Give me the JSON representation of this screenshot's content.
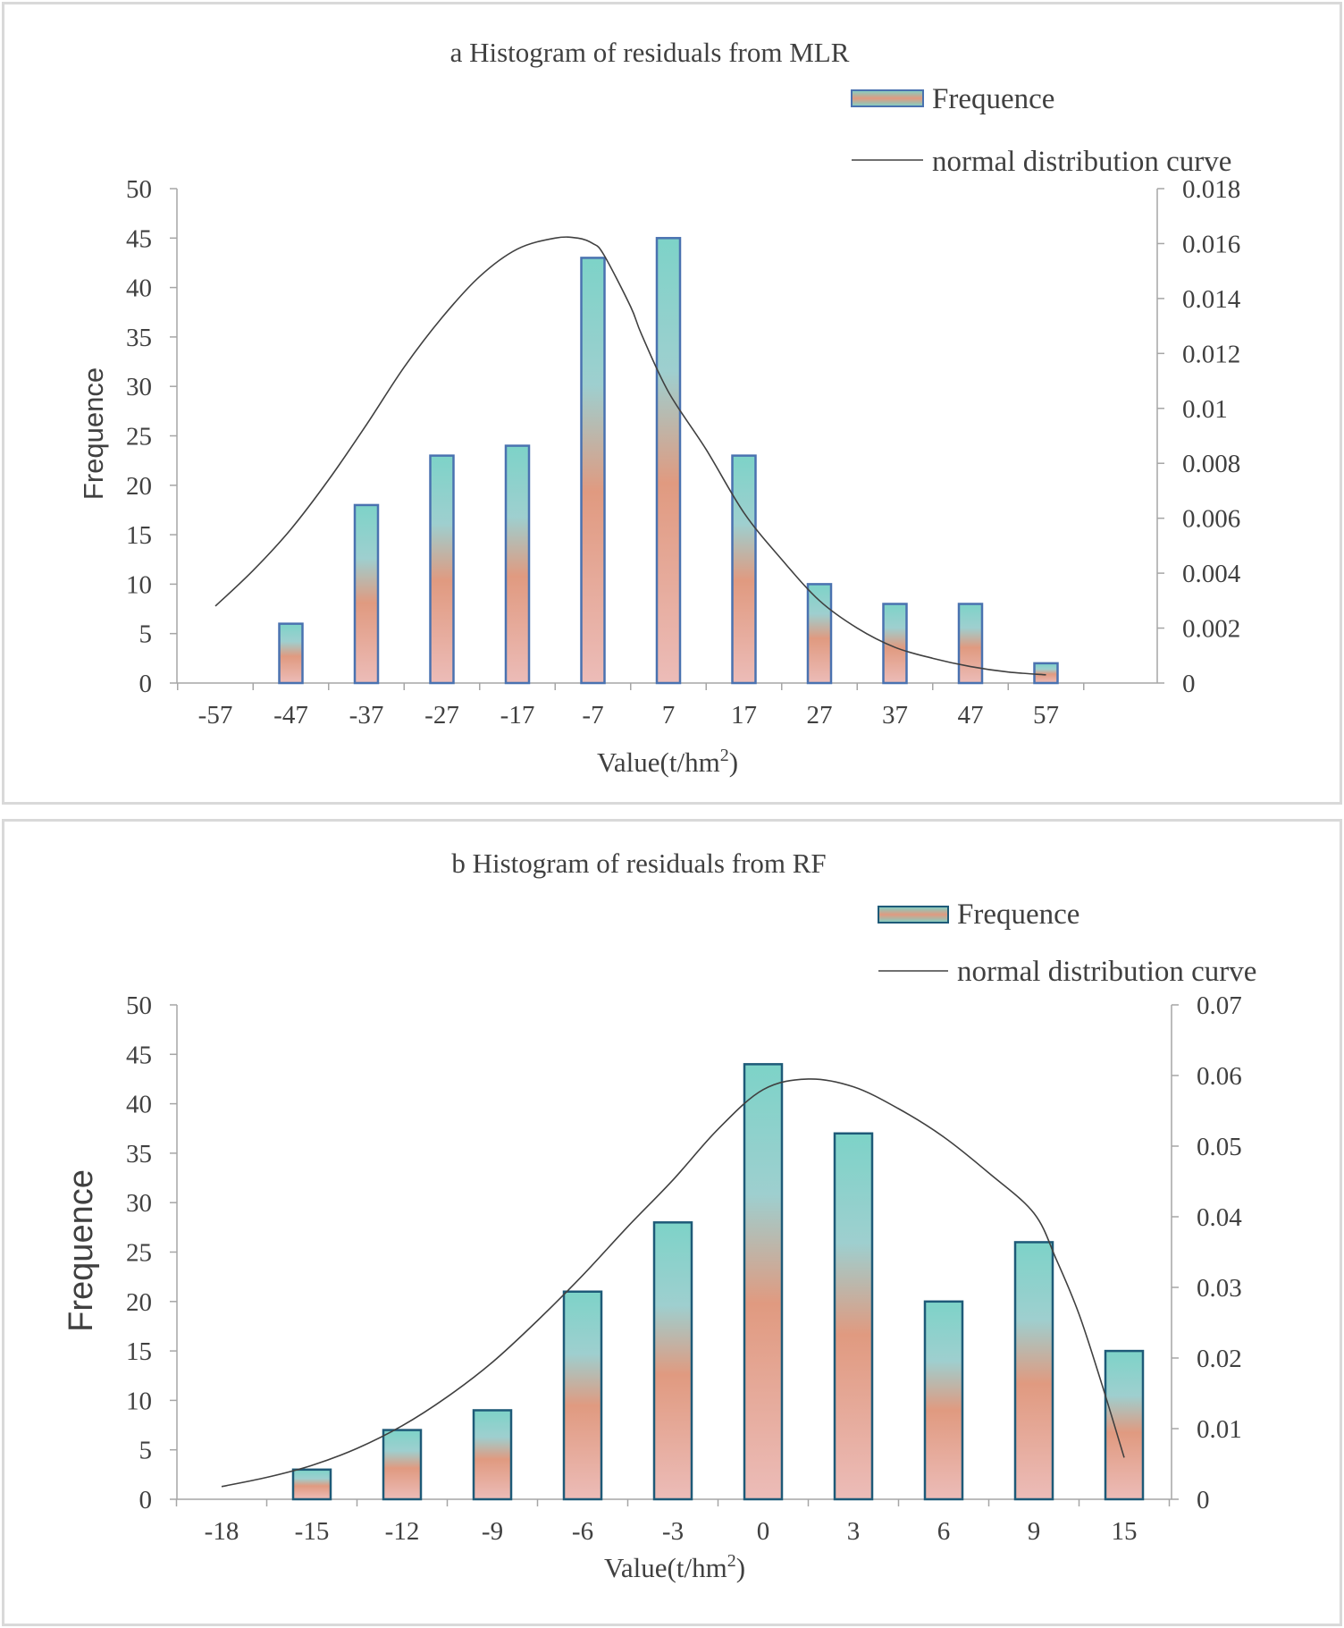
{
  "chart_data": [
    {
      "type": "bar",
      "title": "a Histogram of residuals from MLR",
      "xlabel": "Value(t/hm",
      "xlabel_sup": "2",
      "xlabel_end": ")",
      "ylabel": "Frequence",
      "ylim": [
        0,
        50
      ],
      "y_ticks": [
        "0",
        "5",
        "10",
        "15",
        "20",
        "25",
        "30",
        "35",
        "40",
        "45",
        "50"
      ],
      "y2lim": [
        0,
        0.018
      ],
      "y2_ticks": [
        "0",
        "0.002",
        "0.004",
        "0.006",
        "0.008",
        "0.01",
        "0.012",
        "0.014",
        "0.016",
        "0.018"
      ],
      "categories": [
        "-57",
        "-47",
        "-37",
        "-27",
        "-17",
        "-7",
        "7",
        "17",
        "27",
        "37",
        "47",
        "57"
      ],
      "legend": {
        "position": "top-right",
        "bar_label": "Frequence",
        "line_label": "normal distribution curve"
      },
      "grid": false,
      "series": [
        {
          "name": "Frequence",
          "type": "bar",
          "axis": "left",
          "values": [
            0,
            6,
            18,
            23,
            24,
            43,
            45,
            23,
            10,
            8,
            8,
            2
          ]
        },
        {
          "name": "normal distribution curve",
          "type": "line",
          "axis": "right",
          "x": [
            -57,
            -52,
            -47,
            -42,
            -37,
            -32,
            -27,
            -22,
            -17,
            -12,
            -9,
            -7,
            -5,
            0,
            2,
            7,
            12,
            17,
            22,
            27,
            32,
            37,
            42,
            47,
            52,
            57
          ],
          "values": [
            0.0028,
            0.0041,
            0.0056,
            0.0074,
            0.0094,
            0.0115,
            0.0133,
            0.0148,
            0.0158,
            0.0162,
            0.0162,
            0.016,
            0.0156,
            0.0137,
            0.0127,
            0.0106,
            0.0085,
            0.0062,
            0.0045,
            0.003,
            0.002,
            0.0013,
            0.0009,
            0.0006,
            0.0004,
            0.0003
          ]
        }
      ]
    },
    {
      "type": "bar",
      "title": "b Histogram of residuals from RF",
      "xlabel": "Value(t/hm",
      "xlabel_sup": "2",
      "xlabel_end": ")",
      "ylabel": "Frequence",
      "ylim": [
        0,
        50
      ],
      "y_ticks": [
        "0",
        "5",
        "10",
        "15",
        "20",
        "25",
        "30",
        "35",
        "40",
        "45",
        "50"
      ],
      "y2lim": [
        0,
        0.07
      ],
      "y2_ticks": [
        "0",
        "0.01",
        "0.02",
        "0.03",
        "0.04",
        "0.05",
        "0.06",
        "0.07"
      ],
      "categories": [
        "-18",
        "-15",
        "-12",
        "-9",
        "-6",
        "-3",
        "0",
        "3",
        "6",
        "9",
        "15"
      ],
      "legend": {
        "position": "top-right",
        "bar_label": "Frequence",
        "line_label": "normal distribution curve"
      },
      "grid": false,
      "series": [
        {
          "name": "Frequence",
          "type": "bar",
          "axis": "left",
          "values": [
            0,
            3,
            7,
            9,
            21,
            28,
            44,
            37,
            20,
            26,
            15
          ]
        },
        {
          "name": "normal distribution curve",
          "type": "line",
          "axis": "right",
          "x": [
            -18,
            -16.5,
            -15,
            -13.5,
            -12,
            -10.5,
            -9,
            -7.5,
            -6,
            -4.5,
            -3,
            -1.5,
            0,
            1.5,
            3,
            4.5,
            6,
            7.5,
            9,
            10.5,
            12,
            13.5,
            15
          ],
          "values": [
            0.0018,
            0.0031,
            0.0048,
            0.0072,
            0.0104,
            0.0145,
            0.0194,
            0.0253,
            0.0317,
            0.0386,
            0.0452,
            0.0524,
            0.058,
            0.0595,
            0.0584,
            0.0553,
            0.0513,
            0.0462,
            0.0405,
            0.0339,
            0.0262,
            0.0164,
            0.0059
          ]
        }
      ]
    }
  ]
}
